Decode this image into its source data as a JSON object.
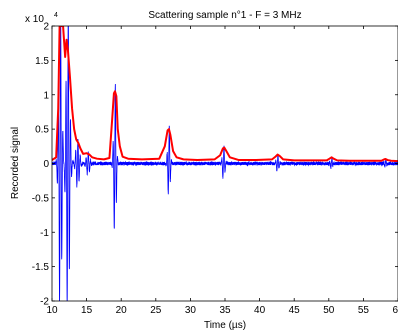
{
  "chart_data": {
    "type": "line",
    "title": "Scattering sample n°1 - F = 3 MHz",
    "xlabel": "Time (µs)",
    "ylabel": "Recorded signal",
    "xlim": [
      10,
      60
    ],
    "ylim": [
      -20000,
      20000
    ],
    "y_exponent_label": "x 10",
    "y_exponent_power": "4",
    "x_ticks": [
      10,
      15,
      20,
      25,
      30,
      35,
      40,
      45,
      50,
      55,
      60
    ],
    "x_tick_labels": [
      "10",
      "15",
      "20",
      "25",
      "30",
      "35",
      "40",
      "45",
      "50",
      "55",
      "60"
    ],
    "y_ticks": [
      -20000,
      -15000,
      -10000,
      -5000,
      0,
      5000,
      10000,
      15000,
      20000
    ],
    "y_tick_labels": [
      "-2",
      "-1.5",
      "-1",
      "-0.5",
      "0",
      "0.5",
      "1",
      "1.5",
      "2"
    ],
    "grid": false,
    "legend": "none",
    "series": [
      {
        "color": "#0000ff",
        "kind": "signal",
        "pulses": [
          {
            "t": 11.2,
            "amp": 20000,
            "width": 0.45
          },
          {
            "t": 12.3,
            "amp": 20000,
            "width": 0.5
          },
          {
            "t": 13.7,
            "amp": 3200,
            "width": 0.5
          },
          {
            "t": 15.2,
            "amp": 1500,
            "width": 0.5
          },
          {
            "t": 19.1,
            "amp": 10500,
            "width": 0.35
          },
          {
            "t": 26.9,
            "amp": 4800,
            "width": 0.35
          },
          {
            "t": 34.8,
            "amp": 2200,
            "width": 0.35
          },
          {
            "t": 42.6,
            "amp": 1100,
            "width": 0.35
          },
          {
            "t": 50.4,
            "amp": 650,
            "width": 0.35
          },
          {
            "t": 58.2,
            "amp": 450,
            "width": 0.35
          }
        ]
      },
      {
        "color": "#ff0000",
        "kind": "envelope",
        "x": [
          10,
          10.6,
          10.9,
          11.1,
          11.3,
          11.6,
          11.9,
          12.1,
          12.3,
          12.6,
          12.9,
          13.2,
          13.5,
          13.8,
          14.1,
          14.5,
          15.0,
          15.4,
          15.8,
          16.5,
          17.5,
          18.3,
          18.7,
          18.95,
          19.1,
          19.3,
          19.5,
          19.8,
          20.2,
          21,
          23,
          25.5,
          26.3,
          26.7,
          26.9,
          27.1,
          27.5,
          28,
          29,
          31,
          33.5,
          34.3,
          34.7,
          34.9,
          35.2,
          35.7,
          37,
          39.5,
          41.8,
          42.3,
          42.6,
          42.9,
          43.4,
          45,
          47.5,
          49.7,
          50.1,
          50.4,
          50.7,
          51.2,
          53,
          55.5,
          57.6,
          58.0,
          58.2,
          58.5,
          59.0,
          60
        ],
        "y": [
          500,
          900,
          8000,
          20000,
          20000,
          20000,
          15500,
          18000,
          16500,
          12500,
          8000,
          5000,
          3500,
          3000,
          2200,
          1400,
          1500,
          1300,
          900,
          700,
          600,
          800,
          6500,
          10200,
          10500,
          9800,
          5000,
          2500,
          1000,
          700,
          600,
          700,
          2500,
          4800,
          5000,
          4200,
          1800,
          900,
          600,
          500,
          600,
          1200,
          2200,
          2300,
          1800,
          900,
          500,
          500,
          600,
          1000,
          1300,
          1100,
          600,
          450,
          450,
          450,
          700,
          900,
          700,
          450,
          400,
          400,
          400,
          600,
          650,
          500,
          400,
          350
        ]
      }
    ]
  }
}
